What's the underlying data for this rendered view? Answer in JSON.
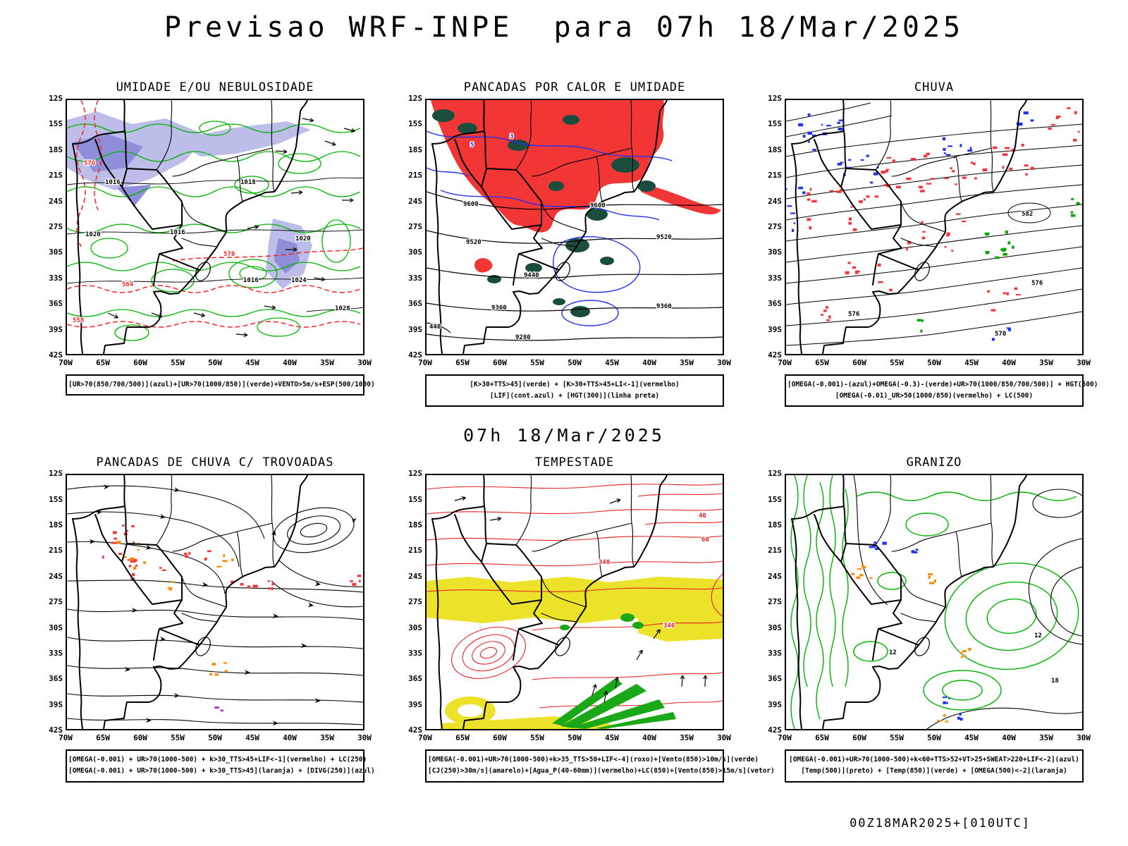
{
  "page": {
    "title": "Previsao WRF-INPE  para 07h 18/Mar/2025",
    "subtitle": "07h 18/Mar/2025",
    "footer": "00Z18MAR2025+[010UTC]"
  },
  "axes": {
    "lat": [
      "12S",
      "15S",
      "18S",
      "21S",
      "24S",
      "27S",
      "30S",
      "33S",
      "36S",
      "39S",
      "42S"
    ],
    "lon": [
      "70W",
      "65W",
      "60W",
      "55W",
      "50W",
      "45W",
      "40W",
      "35W",
      "30W"
    ]
  },
  "panels": [
    {
      "id": "umidade",
      "title": "UMIDADE E/OU NEBULOSIDADE",
      "caption": [
        "[UR>70(850/700/500)](azul)+[UR>70(1000/850)](verde)+VENTO>5m/s+ESP(500/1000)"
      ]
    },
    {
      "id": "pancadas_calor",
      "title": "PANCADAS POR CALOR E UMIDADE",
      "caption": [
        "[K>30+TTS>45](verde) + [K>30+TTS>45+LI<-1](vermelho)",
        "[LIF](cont.azul) + [HGT(300)](linha preta)"
      ]
    },
    {
      "id": "chuva",
      "title": "CHUVA",
      "caption": [
        "[OMEGA(-0.001)-(azul)+OMEGA(-0.3)-(verde)+UR>70(1000/850/700/500)] + HGT(500)",
        "[OMEGA(-0.01)_UR>50(1000/850)(vermelho) + LC(500)"
      ]
    },
    {
      "id": "trovoadas",
      "title": "PANCADAS DE CHUVA C/ TROVOADAS",
      "caption": [
        "[OMEGA(-0.001) + UR>70(1000-500) + k>30_TTS>45+LIF<-1](vermelho) + LC(250)",
        "[OMEGA(-0.001) + UR>70(1000-500) + k>30_TTS>45](laranja) + [DIVG(250)](azul)"
      ]
    },
    {
      "id": "tempestade",
      "title": "TEMPESTADE",
      "caption": [
        "[OMEGA(-0.001)+UR>70(1000-500)+k>35_TTS>50+LIF<-4](roxo)+[Vento(850)>10m/s](verde)",
        "[CJ(250)>30m/s](amarelo)+[Agua_P(40-60mm)](vermelho)+LC(850)+[Vento(850)>15m/s](vetor)"
      ]
    },
    {
      "id": "granizo",
      "title": "GRANIZO",
      "caption": [
        "[OMEGA(-0.001)+UR>70(1000-500)+k<60+TTS>52+VT>25+SWEAT>220+LIF<-2](azul)",
        "[Temp(500)](preto) + [Temp(850)](verde) + [OMEGA(500)<-2](laranja)"
      ]
    }
  ],
  "map_labels": {
    "umidade": [
      "576",
      "570",
      "564",
      "558",
      "1016",
      "1016",
      "1016",
      "1020",
      "1020",
      "1018",
      "1024",
      "1028"
    ],
    "pancadas_calor": [
      "9600",
      "9600",
      "9520",
      "9520",
      "9440",
      "9360",
      "9360",
      "9280",
      "440",
      "3",
      "5"
    ],
    "chuva": [
      "582",
      "576",
      "576",
      "570"
    ],
    "tempestade": [
      "340",
      "340",
      "40",
      "60"
    ],
    "granizo": [
      "12",
      "18",
      "12"
    ]
  },
  "colors": {
    "contour_green": "#00b400",
    "rain_red": "#f23535",
    "line_red": "#ff2222",
    "line_blue": "#2233ee",
    "shade_purple": "#bdbde9",
    "shade_purple_dark": "#8e8ed9",
    "dark_green": "#1b4d3e",
    "orange": "#ff8800",
    "jet_yellow": "#ece22a",
    "map_black": "#000000"
  }
}
